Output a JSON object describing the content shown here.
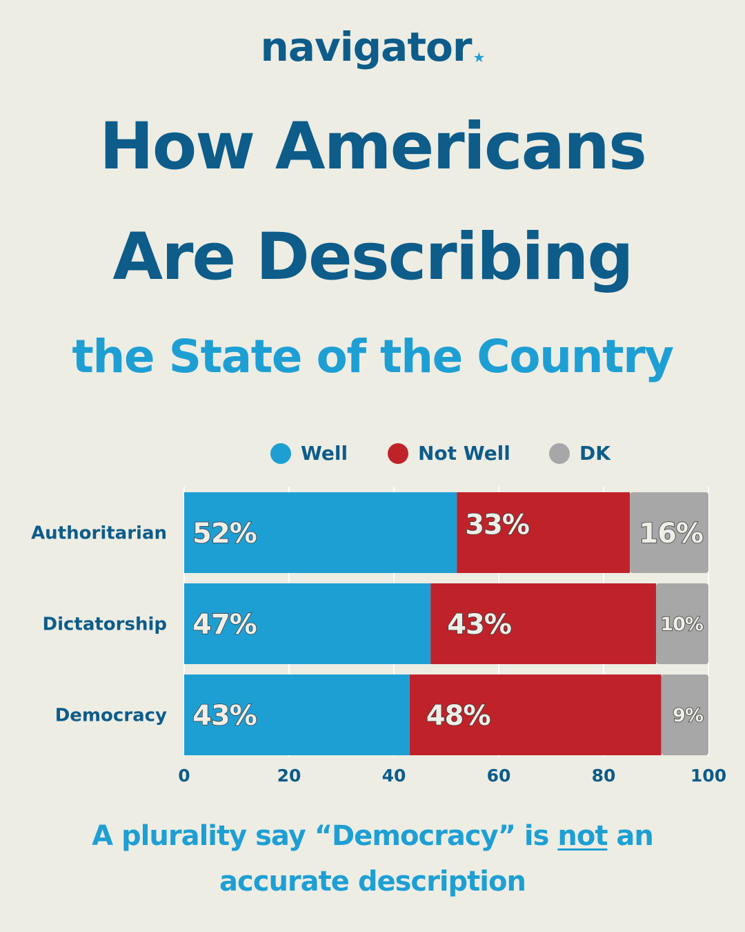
{
  "brand": {
    "name": "navigator",
    "mark": "★"
  },
  "header": {
    "title_line1": "How Americans",
    "title_line2": "Are Describing",
    "subtitle": "the State of the Country"
  },
  "colors": {
    "background": "#edede4",
    "title": "#0d5c8a",
    "accent": "#1e9fd4",
    "well": "#1e9fd4",
    "not_well": "#c0222a",
    "dk": "#a7a7a7"
  },
  "chart_data": {
    "type": "bar",
    "orientation": "horizontal",
    "stacked": true,
    "categories": [
      "Authoritarian",
      "Dictatorship",
      "Democracy"
    ],
    "series": [
      {
        "name": "Well",
        "values": [
          52,
          47,
          43
        ],
        "labels": [
          "52%",
          "47%",
          "43%"
        ]
      },
      {
        "name": "Not Well",
        "values": [
          33,
          43,
          48
        ],
        "labels": [
          "33%",
          "43%",
          "48%"
        ]
      },
      {
        "name": "DK",
        "values": [
          16,
          10,
          9
        ],
        "labels": [
          "16%",
          "10%",
          "9%"
        ]
      }
    ],
    "xticks": [
      0,
      20,
      40,
      60,
      80,
      100
    ],
    "xlim": [
      0,
      100
    ],
    "legend": "top",
    "grid": true
  },
  "footer": {
    "before": "A plurality say “Democracy” is ",
    "emphasis": "not",
    "after": " an",
    "line2": "accurate description"
  }
}
